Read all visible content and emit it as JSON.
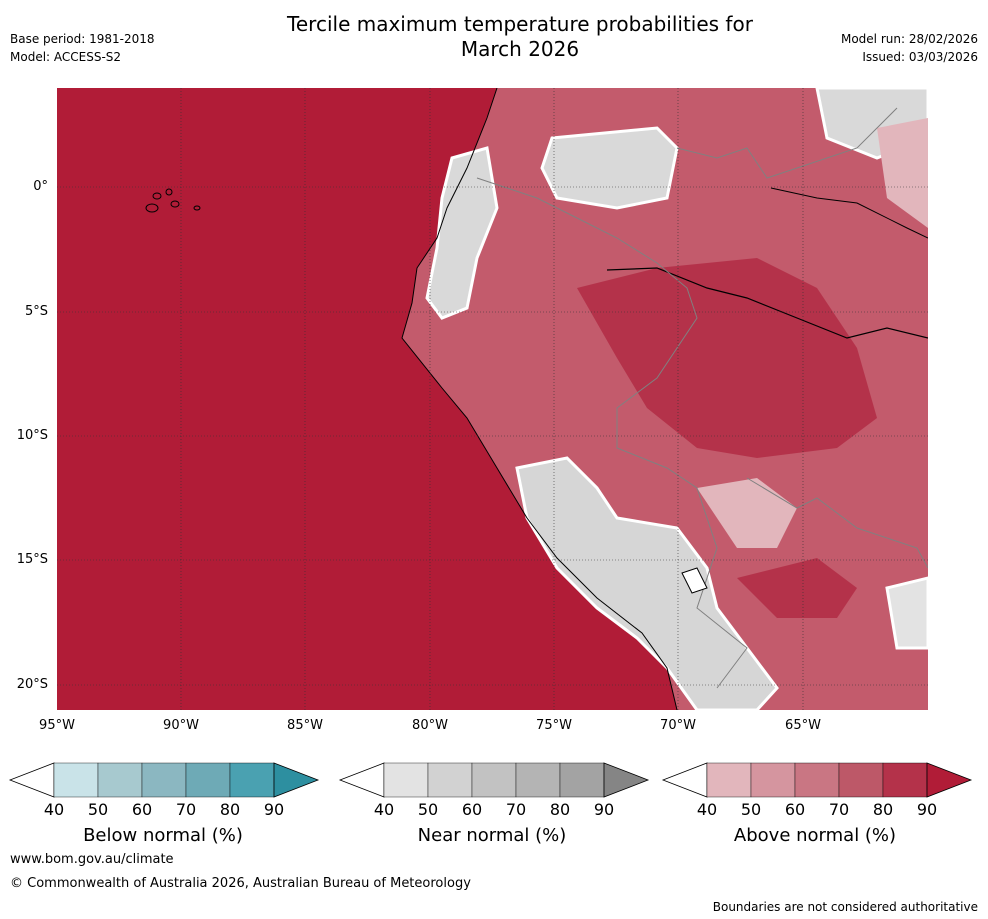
{
  "header": {
    "title_line1": "Tercile maximum temperature probabilities for",
    "title_line2": "March 2026",
    "base_period": "Base period: 1981-2018",
    "model": "Model: ACCESS-S2",
    "model_run": "Model run: 28/02/2026",
    "issued": "Issued: 03/03/2026"
  },
  "map": {
    "lat_labels": [
      "0°",
      "5°S",
      "10°S",
      "15°S",
      "20°S"
    ],
    "lon_labels": [
      "95°W",
      "90°W",
      "85°W",
      "80°W",
      "75°W",
      "70°W",
      "65°W"
    ],
    "ocean_color": "#b11c37"
  },
  "legends": [
    {
      "label": "Below normal (%)",
      "ticks": [
        "40",
        "50",
        "60",
        "70",
        "80",
        "90"
      ],
      "colors": [
        "#c9e3e8",
        "#a7c9cf",
        "#8bb7c1",
        "#6eaab6",
        "#4aa1b1",
        "#2d8fa0"
      ]
    },
    {
      "label": "Near normal (%)",
      "ticks": [
        "40",
        "50",
        "60",
        "70",
        "80",
        "90"
      ],
      "colors": [
        "#e3e3e3",
        "#d2d2d2",
        "#c2c2c2",
        "#b4b4b4",
        "#a3a3a3",
        "#858585"
      ]
    },
    {
      "label": "Above normal (%)",
      "ticks": [
        "40",
        "50",
        "60",
        "70",
        "80",
        "90"
      ],
      "colors": [
        "#e2b6bc",
        "#d5959f",
        "#c97683",
        "#bd5868",
        "#b4324a",
        "#b11c37"
      ]
    }
  ],
  "footer": {
    "website": "www.bom.gov.au/climate",
    "copyright": "© Commonwealth of Australia 2026, Australian Bureau of Meteorology",
    "disclaimer": "Boundaries are not considered authoritative"
  }
}
